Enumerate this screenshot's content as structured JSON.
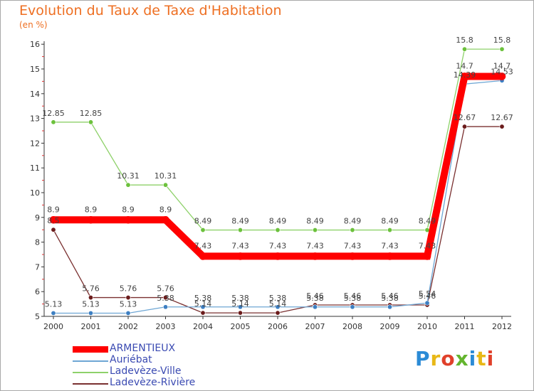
{
  "header": {
    "title": "Evolution du Taux de Taxe d'Habitation",
    "units": "(en %)"
  },
  "logo": {
    "text": "Proxiti",
    "letter_colors": [
      "#2b8bd6",
      "#e8b817",
      "#e0402a",
      "#64b52e",
      "#2b8bd6",
      "#e8b817",
      "#e0402a"
    ]
  },
  "chart_data": {
    "type": "line",
    "x": [
      "2000",
      "2001",
      "2002",
      "2003",
      "2004",
      "2005",
      "2006",
      "2007",
      "2008",
      "2009",
      "2010",
      "2011",
      "2012"
    ],
    "yticks": [
      "5",
      "6",
      "7",
      "8",
      "9",
      "10",
      "11",
      "12",
      "13",
      "14",
      "15",
      "16"
    ],
    "ylim": [
      5,
      16
    ],
    "grid": false,
    "legend_position": "bottom-left",
    "series": [
      {
        "name": "ARMENTIEUX",
        "color": "#ff0000",
        "marker_color": "#ff0000",
        "thick": true,
        "values": [
          8.9,
          8.9,
          8.9,
          8.9,
          7.43,
          7.43,
          7.43,
          7.43,
          7.43,
          7.43,
          7.43,
          14.7,
          14.7
        ],
        "labels": [
          "8.9",
          "8.9",
          "8.9",
          "8.9",
          "7.43",
          "7.43",
          "7.43",
          "7.43",
          "7.43",
          "7.43",
          "7.43",
          "14.7",
          "14.7"
        ]
      },
      {
        "name": "Auriébat",
        "color": "#6ea6d4",
        "marker_color": "#3d7fc2",
        "thick": false,
        "values": [
          5.13,
          5.13,
          5.13,
          5.38,
          5.38,
          5.38,
          5.38,
          5.38,
          5.38,
          5.38,
          5.54,
          14.39,
          14.53
        ],
        "labels": [
          "5.13",
          "5.13",
          "5.13",
          "5.38",
          "5.38",
          "5.38",
          "5.38",
          "5.38",
          "5.38",
          "5.38",
          "5.54",
          "14.39",
          "14.53"
        ]
      },
      {
        "name": "Ladevèze-Ville",
        "color": "#8ed16a",
        "marker_color": "#6cc13c",
        "thick": false,
        "values": [
          12.85,
          12.85,
          10.31,
          10.31,
          8.49,
          8.49,
          8.49,
          8.49,
          8.49,
          8.49,
          8.49,
          15.8,
          15.8
        ],
        "labels": [
          "12.85",
          "12.85",
          "10.31",
          "10.31",
          "8.49",
          "8.49",
          "8.49",
          "8.49",
          "8.49",
          "8.49",
          "8.49",
          "15.8",
          "15.8"
        ]
      },
      {
        "name": "Ladevèze-Rivière",
        "color": "#7a3030",
        "marker_color": "#6b1c1c",
        "thick": false,
        "values": [
          8.5,
          5.76,
          5.76,
          5.76,
          5.14,
          5.14,
          5.14,
          5.46,
          5.46,
          5.46,
          5.46,
          12.67,
          12.67
        ],
        "labels": [
          "8.5",
          "5.76",
          "5.76",
          "5.76",
          "5.14",
          "5.14",
          "5.14",
          "5.46",
          "5.46",
          "5.46",
          "5.46",
          "12.67",
          "12.67"
        ]
      }
    ]
  }
}
